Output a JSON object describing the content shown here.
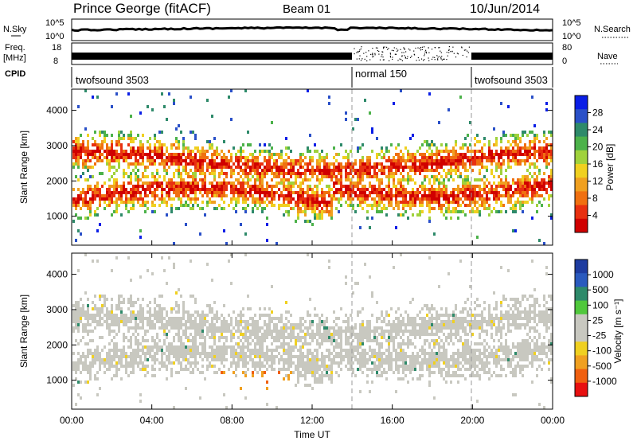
{
  "header": {
    "title": "Prince George (fitACF)",
    "beam": "Beam 01",
    "date": "10/Jun/2014"
  },
  "chart_data": [
    {
      "type": "line",
      "panel": "noise",
      "left_label": "N.Sky",
      "right_label": "N.Search",
      "yticks_left": [
        "10^5",
        "10^0"
      ],
      "yticks_right": [
        "10^5",
        "10^0"
      ]
    },
    {
      "type": "line",
      "panel": "frequency",
      "left_label_line1": "Freq.",
      "left_label_line2": "[MHz]",
      "right_label": "Nave",
      "yticks_left": [
        "18",
        "8"
      ],
      "yticks_right": [
        "80",
        "0"
      ]
    },
    {
      "type": "table",
      "panel": "cpid",
      "label": "CPID",
      "segments": [
        {
          "name": "twofsound 3503",
          "start_hour": 0,
          "end_hour": 14.0
        },
        {
          "name": "normal 150",
          "start_hour": 14.0,
          "end_hour": 20.0
        },
        {
          "name": "twofsound 3503",
          "start_hour": 20.0,
          "end_hour": 24.0
        }
      ]
    },
    {
      "type": "heatmap",
      "panel": "power",
      "ylabel": "Slant Range [km]",
      "ylim": [
        180,
        4600
      ],
      "yticks": [
        1000,
        2000,
        3000,
        4000
      ],
      "colorbar_label": "Power [dB]",
      "colorbar_ticks": [
        "28",
        "24",
        "20",
        "16",
        "12",
        "8",
        "4"
      ],
      "colorbar_colors": [
        "#0a1ee6",
        "#2a50c8",
        "#2e8a6a",
        "#4cb24a",
        "#a0d23c",
        "#f0d020",
        "#f0a020",
        "#f07010",
        "#e83010",
        "#d00000"
      ]
    },
    {
      "type": "heatmap",
      "panel": "velocity",
      "ylabel": "Slant Range [km]",
      "ylim": [
        180,
        4600
      ],
      "yticks": [
        1000,
        2000,
        3000,
        4000
      ],
      "xlabel": "Time UT",
      "xticks": [
        "00:00",
        "04:00",
        "08:00",
        "12:00",
        "16:00",
        "20:00",
        "00:00"
      ],
      "colorbar_label": "Velocity [m s⁻¹]",
      "colorbar_ticks": [
        "1000",
        "500",
        "100",
        "25",
        "-25",
        "-100",
        "-500",
        "-1000"
      ],
      "colorbar_colors": [
        "#1e3ca0",
        "#2a5abe",
        "#2e8a6a",
        "#50c83c",
        "#c8c8c0",
        "#c8c8c0",
        "#f0d020",
        "#f0a020",
        "#f06010",
        "#e81010"
      ]
    }
  ]
}
